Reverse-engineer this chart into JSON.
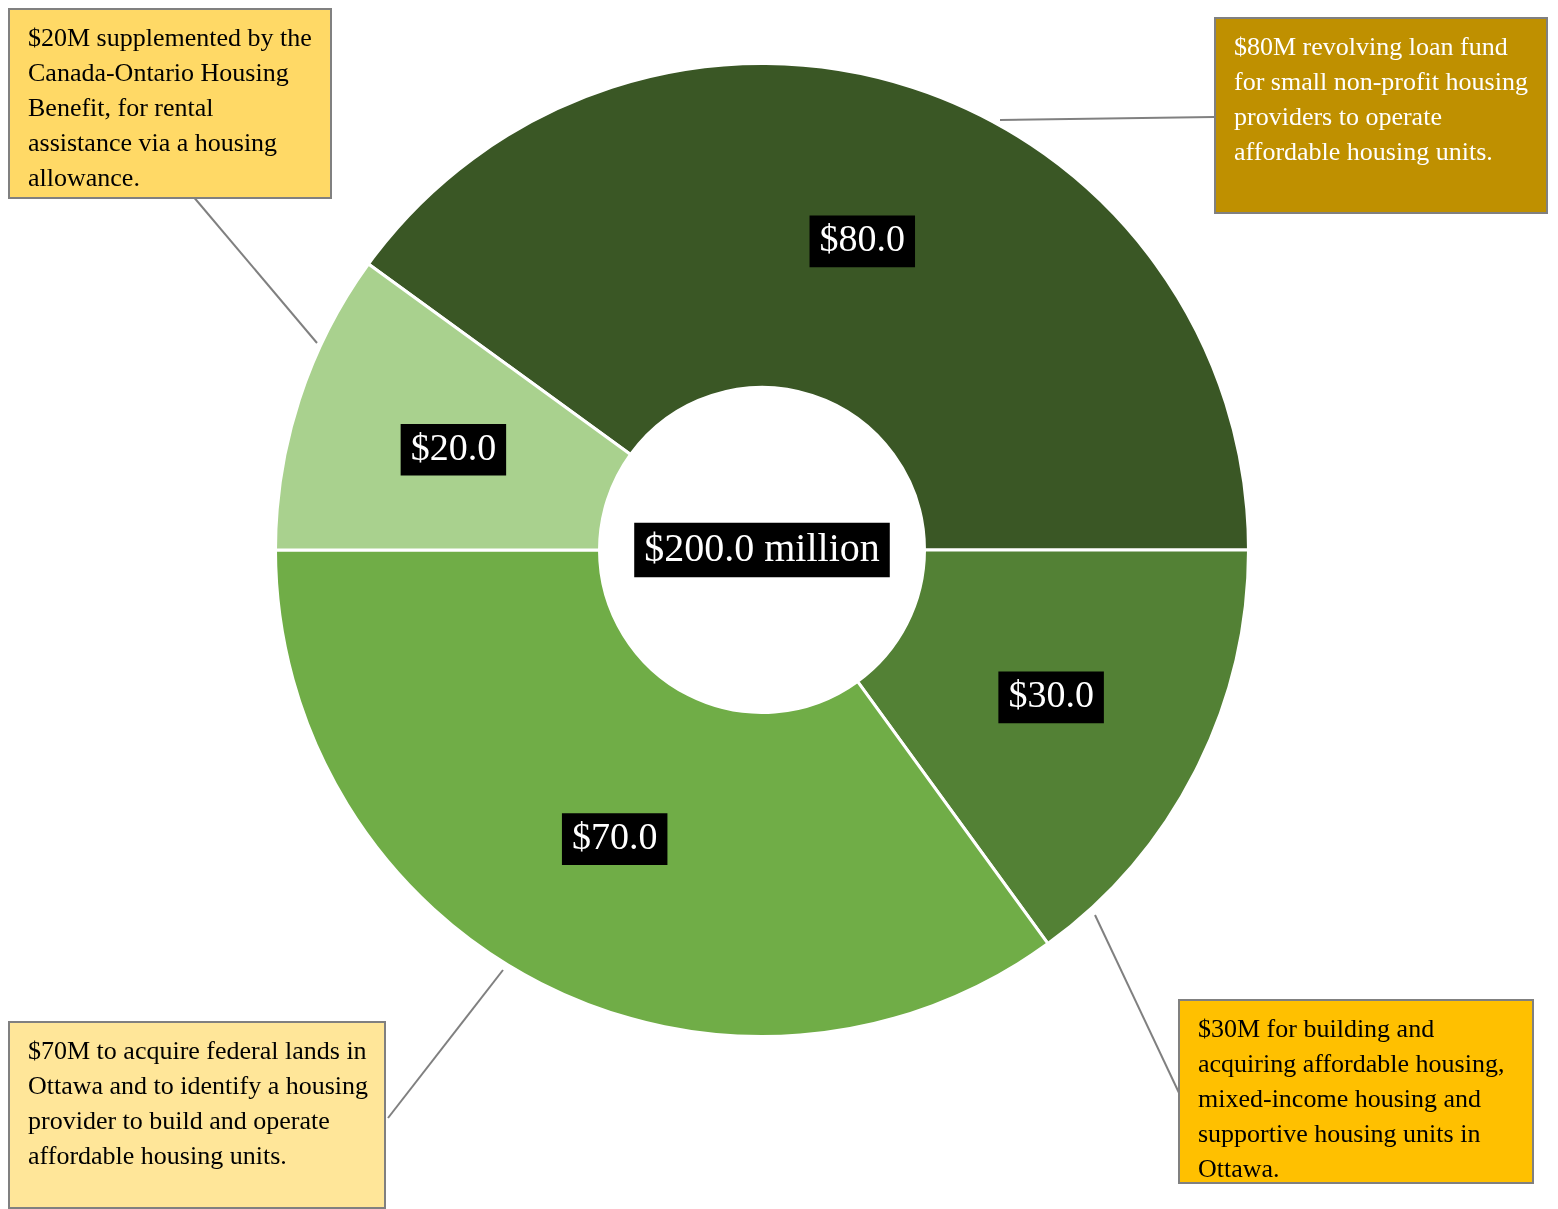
{
  "chart_data": {
    "type": "donut",
    "categories": [
      "$80M revolving loan fund for small non-profit housing providers to operate affordable housing units.",
      "$30M for building and acquiring affordable housing, mixed-income housing and supportive housing units in Ottawa.",
      "$70M to acquire federal lands in Ottawa and to identify a housing provider to build and operate affordable housing units.",
      "$20M supplemented by the Canada-Ontario Housing Benefit, for rental assistance via a housing allowance."
    ],
    "values": [
      80,
      30,
      70,
      20
    ],
    "colors": [
      "#3a5725",
      "#538135",
      "#70ad47",
      "#a9d18e"
    ],
    "value_labels": [
      "$80.0",
      "$30.0",
      "$70.0",
      "$20.0"
    ],
    "annotations": [
      "$200.0 million"
    ]
  }
}
